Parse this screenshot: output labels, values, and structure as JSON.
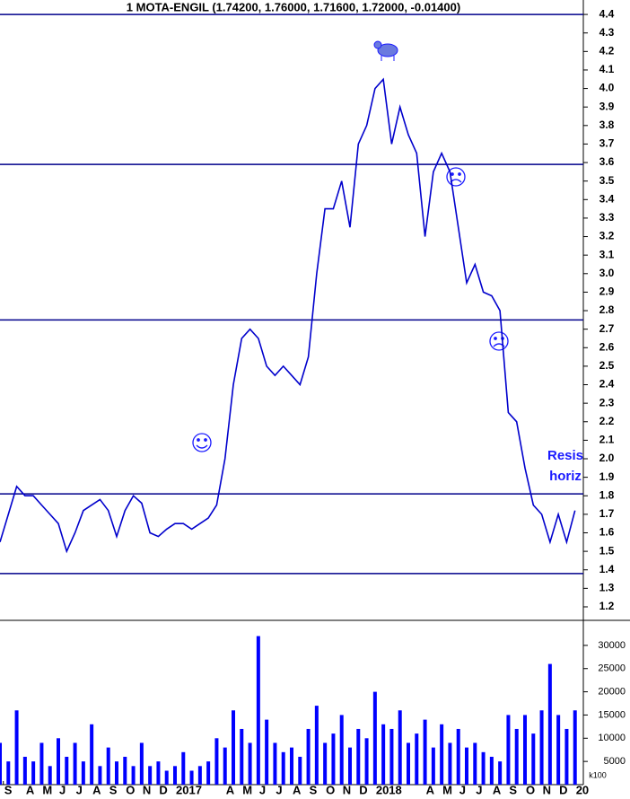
{
  "chart_data": [
    {
      "type": "line",
      "title": "1 MOTA-ENGIL  (1.74200, 1.76000, 1.71600, 1.72000, -0.01400)",
      "x": [
        -1.5,
        -1,
        -0.5,
        0,
        0.5,
        1,
        1.5,
        2,
        2.5,
        3,
        3.5,
        4,
        4.5,
        5,
        5.5,
        6,
        6.5,
        7,
        7.5,
        8,
        8.5,
        9,
        9.5,
        10,
        10.5,
        11,
        11.5,
        12,
        12.5,
        13,
        13.5,
        14,
        14.5,
        15,
        15.5,
        16,
        16.5,
        17,
        17.5,
        18,
        18.5,
        19,
        19.5,
        20,
        20.5,
        21,
        21.5,
        22,
        22.5,
        23,
        23.5,
        24,
        24.5,
        25,
        25.5,
        26,
        26.5,
        27,
        27.5,
        28,
        28.5,
        29,
        29.5,
        30,
        30.5,
        31,
        31.5,
        32,
        32.5,
        33
      ],
      "values": [
        1.55,
        1.7,
        1.85,
        1.8,
        1.8,
        1.75,
        1.7,
        1.65,
        1.5,
        1.6,
        1.72,
        1.75,
        1.78,
        1.72,
        1.58,
        1.72,
        1.8,
        1.76,
        1.6,
        1.58,
        1.62,
        1.65,
        1.65,
        1.62,
        1.65,
        1.68,
        1.75,
        2.0,
        2.4,
        2.65,
        2.7,
        2.65,
        2.5,
        2.45,
        2.5,
        2.45,
        2.4,
        2.55,
        3.0,
        3.35,
        3.35,
        3.5,
        3.25,
        3.7,
        3.8,
        4.0,
        4.05,
        3.7,
        3.9,
        3.75,
        3.65,
        3.2,
        3.55,
        3.65,
        3.55,
        3.25,
        2.95,
        3.05,
        2.9,
        2.88,
        2.8,
        2.25,
        2.2,
        1.95,
        1.75,
        1.7,
        1.55,
        1.7,
        1.55,
        1.72
      ],
      "color": "#0000cc",
      "xlim": [
        -1.5,
        33.5
      ],
      "ylim": [
        1.132,
        4.478
      ],
      "yticks": [
        1.2,
        1.3,
        1.4,
        1.5,
        1.6,
        1.7,
        1.8,
        1.9,
        {
          "value": 2,
          "label": "2.0"
        },
        2.1,
        2.2,
        2.3,
        2.4,
        2.5,
        2.6,
        2.7,
        2.8,
        2.9,
        {
          "value": 3,
          "label": "3.0"
        },
        3.1,
        3.2,
        3.3,
        3.4,
        3.5,
        3.6,
        3.7,
        3.8,
        3.9,
        {
          "value": 4,
          "label": "4.0"
        },
        4.1,
        4.2,
        4.3,
        4.4
      ],
      "hlines": [
        4.4,
        3.59,
        2.75,
        1.81,
        1.38
      ],
      "hline_color": "#00008b",
      "annotations": [
        "Resis",
        "horiz"
      ]
    },
    {
      "type": "bar",
      "x": [
        -1.5,
        -1,
        -0.5,
        0,
        0.5,
        1,
        1.5,
        2,
        2.5,
        3,
        3.5,
        4,
        4.5,
        5,
        5.5,
        6,
        6.5,
        7,
        7.5,
        8,
        8.5,
        9,
        9.5,
        10,
        10.5,
        11,
        11.5,
        12,
        12.5,
        13,
        13.5,
        14,
        14.5,
        15,
        15.5,
        16,
        16.5,
        17,
        17.5,
        18,
        18.5,
        19,
        19.5,
        20,
        20.5,
        21,
        21.5,
        22,
        22.5,
        23,
        23.5,
        24,
        24.5,
        25,
        25.5,
        26,
        26.5,
        27,
        27.5,
        28,
        28.5,
        29,
        29.5,
        30,
        30.5,
        31,
        31.5,
        32,
        32.5,
        33
      ],
      "values": [
        9000,
        5000,
        16000,
        6000,
        5000,
        9000,
        4000,
        10000,
        6000,
        9000,
        5000,
        13000,
        4000,
        8000,
        5000,
        6000,
        4000,
        9000,
        4000,
        5000,
        3000,
        4000,
        7000,
        3000,
        4000,
        5000,
        10000,
        8000,
        16000,
        12000,
        9000,
        32000,
        14000,
        9000,
        7000,
        8000,
        6000,
        12000,
        17000,
        9000,
        11000,
        15000,
        8000,
        12000,
        10000,
        20000,
        13000,
        12000,
        16000,
        9000,
        11000,
        14000,
        8000,
        13000,
        9000,
        12000,
        8000,
        9000,
        7000,
        6000,
        5000,
        15000,
        12000,
        15000,
        11000,
        16000,
        26000,
        15000,
        12000,
        16000
      ],
      "color": "#0000ff",
      "xlim": [
        -1.5,
        33.5
      ],
      "ylim": [
        0,
        35200
      ],
      "yticks": [
        5000,
        10000,
        15000,
        20000,
        25000,
        30000
      ],
      "unit_label": "k100",
      "xticks": [
        {
          "value": -1.3,
          "label": "S"
        },
        {
          "value": 0,
          "label": "A"
        },
        {
          "value": 1,
          "label": "M"
        },
        {
          "value": 2,
          "label": "J"
        },
        {
          "value": 3,
          "label": "J"
        },
        {
          "value": 4,
          "label": "A"
        },
        {
          "value": 5,
          "label": "S"
        },
        {
          "value": 6,
          "label": "O"
        },
        {
          "value": 7,
          "label": "N"
        },
        {
          "value": 8,
          "label": "D"
        },
        {
          "value": 9,
          "label": "2017"
        },
        {
          "value": 12,
          "label": "A"
        },
        {
          "value": 13,
          "label": "M"
        },
        {
          "value": 14,
          "label": "J"
        },
        {
          "value": 15,
          "label": "J"
        },
        {
          "value": 16,
          "label": "A"
        },
        {
          "value": 17,
          "label": "S"
        },
        {
          "value": 18,
          "label": "O"
        },
        {
          "value": 19,
          "label": "N"
        },
        {
          "value": 20,
          "label": "D"
        },
        {
          "value": 21,
          "label": "2018"
        },
        {
          "value": 24,
          "label": "A"
        },
        {
          "value": 25,
          "label": "M"
        },
        {
          "value": 26,
          "label": "J"
        },
        {
          "value": 27,
          "label": "J"
        },
        {
          "value": 28,
          "label": "A"
        },
        {
          "value": 29,
          "label": "S"
        },
        {
          "value": 30,
          "label": "O"
        },
        {
          "value": 31,
          "label": "N"
        },
        {
          "value": 32,
          "label": "D"
        },
        {
          "value": 33,
          "label": "20"
        }
      ]
    }
  ]
}
